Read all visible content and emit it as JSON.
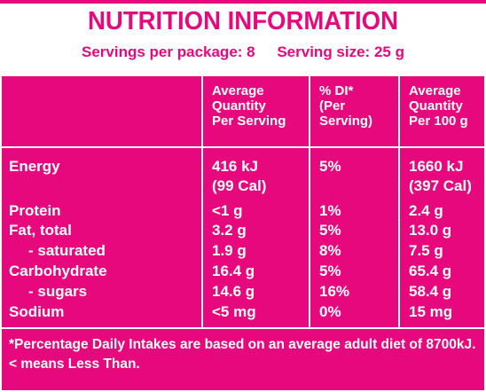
{
  "title": "NUTRITION INFORMATION",
  "servings": "Servings per package: 8",
  "serving_size": "Serving size: 25 g",
  "colors": {
    "brand": "#e8087e",
    "text": "#ffffff"
  },
  "headers": {
    "avg_serving": "Average\nQuantity\nPer Serving",
    "di": "% DI*\n(Per\nServing)",
    "avg_100g": "Average\nQuantity\nPer 100 g"
  },
  "rows": [
    {
      "name": "Energy",
      "serving": "416 kJ",
      "di": "5%",
      "per100": "1660 kJ"
    },
    {
      "name": "",
      "serving": "(99 Cal)",
      "di": "",
      "per100": "(397 Cal)"
    },
    {
      "name": "Protein",
      "serving": "<1 g",
      "di": "1%",
      "per100": "2.4 g"
    },
    {
      "name": "Fat, total",
      "serving": "3.2 g",
      "di": "5%",
      "per100": "13.0 g"
    },
    {
      "name": "- saturated",
      "serving": "1.9 g",
      "di": "8%",
      "per100": "7.5 g"
    },
    {
      "name": "Carbohydrate",
      "serving": "16.4 g",
      "di": "5%",
      "per100": "65.4 g"
    },
    {
      "name": "- sugars",
      "serving": "14.6 g",
      "di": "16%",
      "per100": "58.4 g"
    },
    {
      "name": "Sodium",
      "serving": "<5 mg",
      "di": "0%",
      "per100": "15 mg"
    }
  ],
  "footnote_1": "*Percentage Daily Intakes are based on an average adult diet of 8700kJ.",
  "footnote_2": "< means Less Than."
}
